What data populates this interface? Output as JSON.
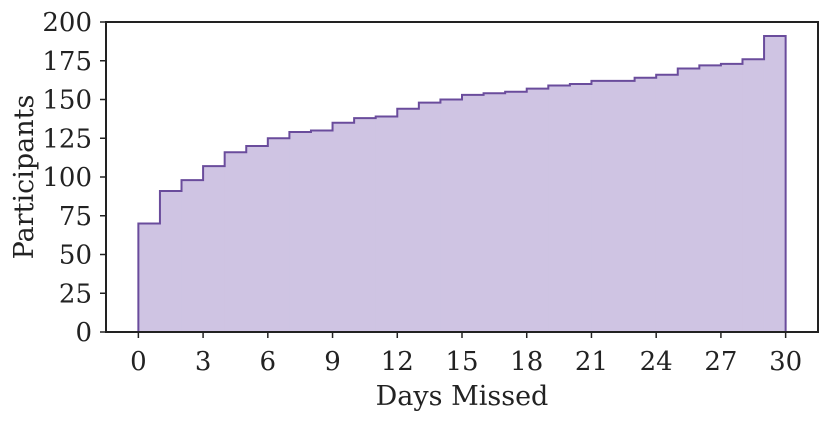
{
  "chart_data": {
    "type": "bar",
    "style": "cumulative step histogram",
    "title": "",
    "xlabel": "Days Missed",
    "ylabel": "Participants",
    "xlim": [
      -1.5,
      31.5
    ],
    "ylim": [
      0,
      200
    ],
    "x_ticks": [
      0,
      3,
      6,
      9,
      12,
      15,
      18,
      21,
      24,
      27,
      30
    ],
    "y_ticks": [
      0,
      25,
      50,
      75,
      100,
      125,
      150,
      175,
      200
    ],
    "bin_width": 1,
    "bins_start": 0,
    "values": [
      70,
      91,
      98,
      107,
      116,
      120,
      125,
      129,
      130,
      135,
      138,
      139,
      144,
      148,
      150,
      153,
      154,
      155,
      157,
      159,
      160,
      162,
      162,
      164,
      166,
      170,
      172,
      173,
      176,
      191
    ],
    "fill_color": "#cfc4e3",
    "line_color": "#6a4c9c",
    "grid": false
  }
}
